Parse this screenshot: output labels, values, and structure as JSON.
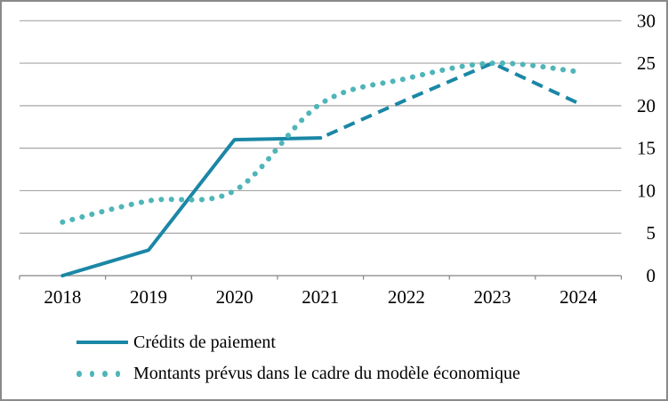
{
  "chart_data": {
    "type": "line",
    "title": "",
    "xlabel": "",
    "ylabel": "",
    "categories": [
      "2018",
      "2019",
      "2020",
      "2021",
      "2022",
      "2023",
      "2024"
    ],
    "series": [
      {
        "name": "Crédits de paiement",
        "color": "#1b87a6",
        "line_style": "solid",
        "smooth": false,
        "values": [
          0,
          3,
          16,
          16.2,
          null,
          null,
          null
        ],
        "forecast": {
          "line_style": "dashed",
          "values": [
            null,
            null,
            null,
            16.2,
            20.7,
            25,
            20.3
          ]
        }
      },
      {
        "name": "Montants prévus dans le cadre du modèle économique",
        "color": "#4fb5b8",
        "line_style": "dotted",
        "smooth": true,
        "values": [
          6.3,
          8.8,
          10,
          20.2,
          23.2,
          25,
          24
        ]
      }
    ],
    "ylim": [
      0,
      30
    ],
    "yticks": [
      0,
      5,
      10,
      15,
      20,
      25,
      30
    ],
    "ytick_side": "right",
    "grid": "horizontal",
    "legend_position": "bottom-left"
  }
}
